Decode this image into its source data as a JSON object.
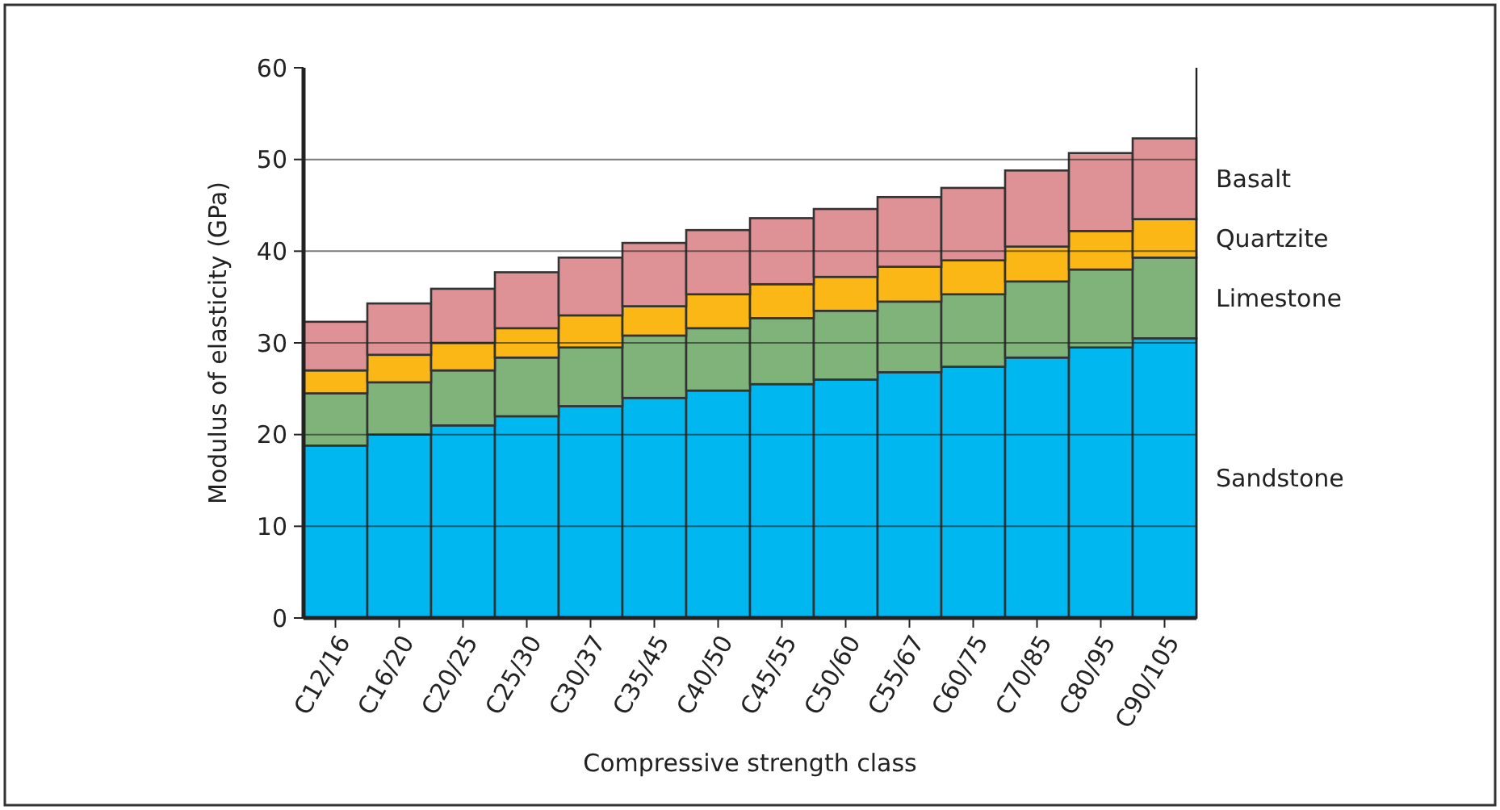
{
  "chart_data": {
    "type": "bar",
    "stacked": true,
    "xlabel": "Compressive strength class",
    "ylabel": "Modulus of elasticity (GPa)",
    "categories": [
      "C12/16",
      "C16/20",
      "C20/25",
      "C25/30",
      "C30/37",
      "C35/45",
      "C40/50",
      "C45/55",
      "C50/60",
      "C55/67",
      "C60/75",
      "C70/85",
      "C80/95",
      "C90/105"
    ],
    "series": [
      {
        "name": "Sandstone",
        "color": "#00b7ef",
        "values": [
          18.8,
          20,
          21,
          22,
          23.1,
          24,
          24.8,
          25.5,
          26,
          26.8,
          27.4,
          28.4,
          29.5,
          30.5
        ]
      },
      {
        "name": "Limestone",
        "color": "#80b37a",
        "values": [
          5.7,
          5.7,
          6,
          6.4,
          6.4,
          6.8,
          6.8,
          7.2,
          7.5,
          7.7,
          7.9,
          8.3,
          8.5,
          8.8
        ]
      },
      {
        "name": "Quartzite",
        "color": "#fbb715",
        "values": [
          2.5,
          3,
          3,
          3.2,
          3.5,
          3.2,
          3.7,
          3.7,
          3.7,
          3.8,
          3.7,
          3.8,
          4.2,
          4.2
        ]
      },
      {
        "name": "Basalt",
        "color": "#de9295",
        "values": [
          5.3,
          5.6,
          5.9,
          6.1,
          6.3,
          6.9,
          7,
          7.2,
          7.4,
          7.6,
          7.9,
          8.3,
          8.5,
          8.8
        ]
      }
    ],
    "ylim": [
      0,
      60
    ],
    "yticks": [
      0,
      10,
      20,
      30,
      40,
      50,
      60
    ],
    "grid": "y"
  }
}
